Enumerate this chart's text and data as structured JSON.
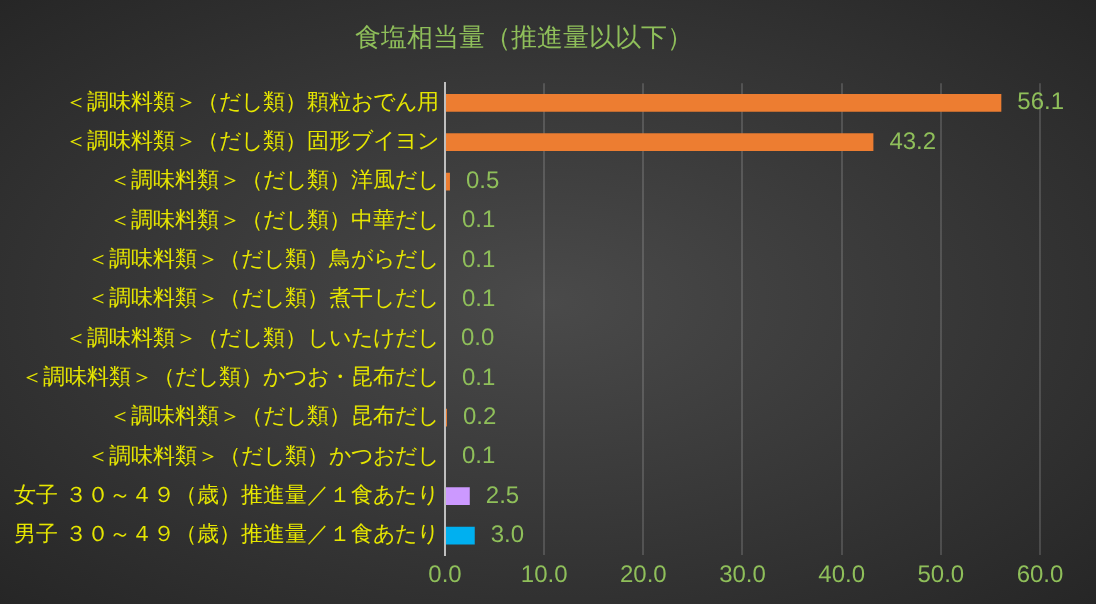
{
  "chart_data": {
    "type": "bar",
    "orientation": "horizontal",
    "title": "食塩相当量（推進量以以下）",
    "categories": [
      "＜調味料類＞（だし類）顆粒おでん用",
      "＜調味料類＞（だし類）固形ブイヨン",
      "＜調味料類＞（だし類）洋風だし",
      "＜調味料類＞（だし類）中華だし",
      "＜調味料類＞（だし類）鳥がらだし",
      "＜調味料類＞（だし類）煮干しだし",
      "＜調味料類＞（だし類）しいたけだし",
      "＜調味料類＞（だし類）かつお・昆布だし",
      "＜調味料類＞（だし類）昆布だし",
      "＜調味料類＞（だし類）かつおだし",
      "女子 ３０～４９（歳）推進量／１食あたり",
      "男子 ３０～４９（歳）推進量／１食あたり"
    ],
    "values": [
      56.1,
      43.2,
      0.5,
      0.1,
      0.1,
      0.1,
      0.0,
      0.1,
      0.2,
      0.1,
      2.5,
      3.0
    ],
    "colors": [
      "#ed7d31",
      "#ed7d31",
      "#ed7d31",
      "#ed7d31",
      "#ed7d31",
      "#ed7d31",
      "#ed7d31",
      "#ed7d31",
      "#ed7d31",
      "#ed7d31",
      "#cc99ff",
      "#00b0f0"
    ],
    "value_labels": [
      "56.1",
      "43.2",
      "0.5",
      "0.1",
      "0.1",
      "0.1",
      "0.0",
      "0.1",
      "0.2",
      "0.1",
      "2.5",
      "3.0"
    ],
    "xlim": [
      0,
      60
    ],
    "xticks": [
      {
        "value": 0,
        "label": "0.0"
      },
      {
        "value": 10,
        "label": "10.0"
      },
      {
        "value": 20,
        "label": "20.0"
      },
      {
        "value": 30,
        "label": "30.0"
      },
      {
        "value": 40,
        "label": "40.0"
      },
      {
        "value": 50,
        "label": "50.0"
      },
      {
        "value": 60,
        "label": "60.0"
      }
    ],
    "grid": "x",
    "legend": false
  }
}
